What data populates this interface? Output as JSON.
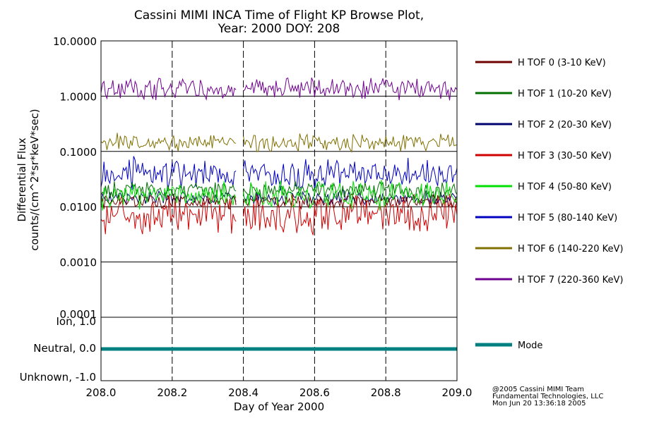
{
  "chart_data": {
    "type": "line",
    "title": "Cassini MIMI INCA Time of Flight KP Browse Plot,",
    "subtitle": "Year: 2000 DOY: 208",
    "ylabel": "Differential Flux",
    "ylabel2": "counts/(cm^2*sr*keV*sec)",
    "xlabel": "Day of Year 2000",
    "xlim": [
      208.0,
      209.0
    ],
    "x_ticks": [
      "208.0",
      "208.2",
      "208.4",
      "208.6",
      "208.8",
      "209.0"
    ],
    "x_dashed_grid": [
      208.2,
      208.4,
      208.6,
      208.8
    ],
    "ylim": [
      0.0001,
      10.0
    ],
    "y_scale": "log",
    "y_ticks": [
      "10.0000",
      "1.0000",
      "0.1000",
      "0.0100",
      "0.0010",
      "0.0001"
    ],
    "data_gap": [
      208.38,
      208.4
    ],
    "series": [
      {
        "name": "H TOF 0 (3-10 KeV)",
        "color": "#700000",
        "level": 0.0125,
        "variation": 0.1,
        "seed": 11
      },
      {
        "name": "H TOF 1 (10-20 KeV)",
        "color": "#007000",
        "level": 0.02,
        "variation": 0.12,
        "seed": 23
      },
      {
        "name": "H TOF 2 (20-30 KeV)",
        "color": "#000070",
        "level": 0.0145,
        "variation": 0.1,
        "seed": 37
      },
      {
        "name": "H TOF 3 (30-50 KeV)",
        "color": "#d00000",
        "level": 0.0075,
        "variation": 0.28,
        "seed": 41
      },
      {
        "name": "H TOF 4 (50-80 KeV)",
        "color": "#00e000",
        "level": 0.0165,
        "variation": 0.2,
        "seed": 53
      },
      {
        "name": "H TOF 5 (80-140 KeV)",
        "color": "#0000c0",
        "level": 0.04,
        "variation": 0.22,
        "seed": 67
      },
      {
        "name": "H TOF 6 (140-220 KeV)",
        "color": "#807000",
        "level": 0.145,
        "variation": 0.12,
        "seed": 79
      },
      {
        "name": "H TOF 7 (220-360 KeV)",
        "color": "#700090",
        "level": 1.35,
        "variation": 0.15,
        "seed": 97
      }
    ],
    "mode_panel": {
      "ylabels": [
        "Ion, 1.0",
        "Neutral, 0.0",
        "Unknown, -1.0"
      ],
      "ylim": [
        -1.2,
        1.2
      ],
      "series": {
        "name": "Mode",
        "color": "#008080",
        "value": 0.0
      }
    }
  },
  "credits": [
    "@2005 Cassini MIMI Team",
    "Fundamental Technologies, LLC",
    "Mon Jun 20 13:36:18 2005"
  ]
}
